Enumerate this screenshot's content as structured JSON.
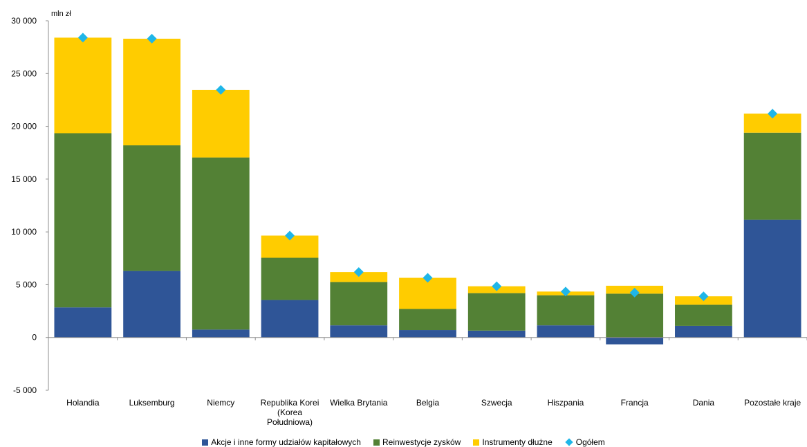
{
  "chart_data": {
    "type": "bar",
    "stacked": true,
    "unit_label": "mln zł",
    "ylim": [
      -5000,
      30000
    ],
    "yticks": [
      -5000,
      0,
      5000,
      10000,
      15000,
      20000,
      25000,
      30000
    ],
    "ytick_labels": [
      "-5 000",
      "0",
      "5 000",
      "10 000",
      "15 000",
      "20 000",
      "25 000",
      "30 000"
    ],
    "categories": [
      "Holandia",
      "Luksemburg",
      "Niemcy",
      "Republika Korei\n(Korea\nPołudniowa)",
      "Wielka Brytania",
      "Belgia",
      "Szwecja",
      "Hiszpania",
      "Francja",
      "Dania",
      "Pozostałe kraje"
    ],
    "series": [
      {
        "name": "Akcje i inne formy udziałów kapitałowych",
        "color": "#2f5597",
        "values": [
          2850,
          6300,
          750,
          3550,
          1150,
          700,
          650,
          1150,
          -650,
          1100,
          11150
        ]
      },
      {
        "name": "Reinwestycje zysków",
        "color": "#538135",
        "values": [
          16500,
          11900,
          16300,
          4000,
          4100,
          2000,
          3550,
          2850,
          4150,
          2000,
          8250
        ]
      },
      {
        "name": "Instrumenty dłużne",
        "color": "#ffcc00",
        "values": [
          9050,
          10100,
          6400,
          2100,
          950,
          2950,
          650,
          350,
          750,
          800,
          1800
        ]
      }
    ],
    "total_series": {
      "name": "Ogółem",
      "color": "#1fb6e8",
      "values": [
        28400,
        28300,
        23450,
        9650,
        6200,
        5650,
        4850,
        4350,
        4250,
        3900,
        21200
      ]
    },
    "legend_position": "bottom",
    "grid": false
  }
}
